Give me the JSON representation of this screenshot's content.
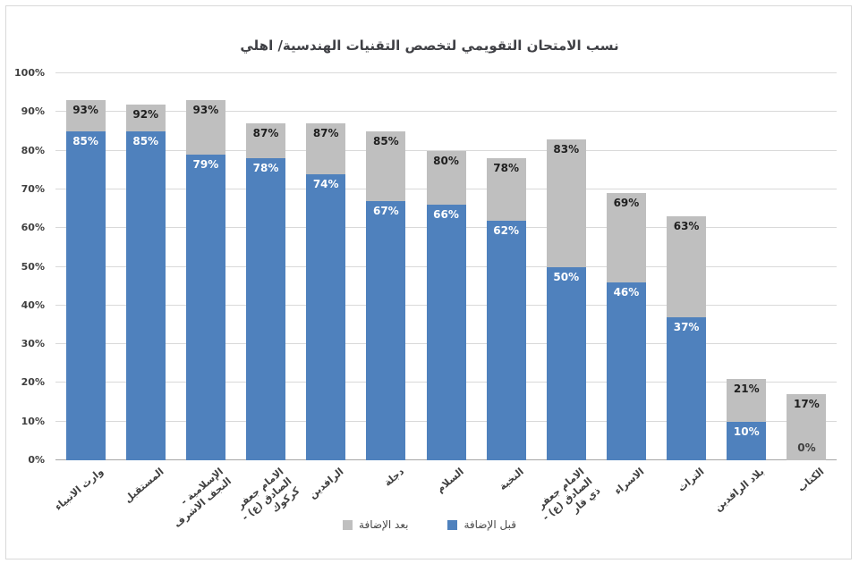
{
  "title": "نسب الامتحان التقويمي لتخصص التقنيات الهندسية/ اهلي",
  "colors": {
    "before": "#4f81bd",
    "after": "#bfbfbf",
    "grid": "#d9d9d9",
    "axis_line": "#a6a6a6",
    "axis_text": "#404040",
    "title_text": "#3f4045",
    "label_dark": "#1f1f1f",
    "label_light": "#ffffff",
    "background": "#ffffff"
  },
  "legend": [
    {
      "label": "بعد الإضافة",
      "color": "#bfbfbf"
    },
    {
      "label": "قبل الإضافة",
      "color": "#4f81bd"
    }
  ],
  "chart_data": {
    "type": "bar",
    "stacked": true,
    "title": "نسب الامتحان التقويمي لتخصص التقنيات الهندسية/ اهلي",
    "categories": [
      "وارث الانبياء",
      "المستقبل",
      "الإسلامية -\nالنجف الاشرف",
      "الامام جعفر\nالصادق (ع) -\nكركوك",
      "الرافدين",
      "دجلة",
      "السلام",
      "النخبة",
      "الامام جعفر\nالصادق (ع) -\nذي قار",
      "الاسراء",
      "التراث",
      "بلاد الرافدين",
      "الكتاب"
    ],
    "series": [
      {
        "name": "قبل الإضافة",
        "color": "#4f81bd",
        "values": [
          85,
          85,
          79,
          78,
          74,
          67,
          66,
          62,
          50,
          46,
          37,
          10,
          0
        ]
      },
      {
        "name": "بعد الإضافة",
        "color": "#bfbfbf",
        "totals": [
          93,
          92,
          93,
          87,
          87,
          85,
          80,
          78,
          83,
          69,
          63,
          21,
          17
        ]
      }
    ],
    "ylim": [
      0,
      100
    ],
    "ytick_step": 10,
    "ytick_suffix": "%",
    "value_suffix": "%",
    "grid": true,
    "legend_position": "bottom"
  }
}
